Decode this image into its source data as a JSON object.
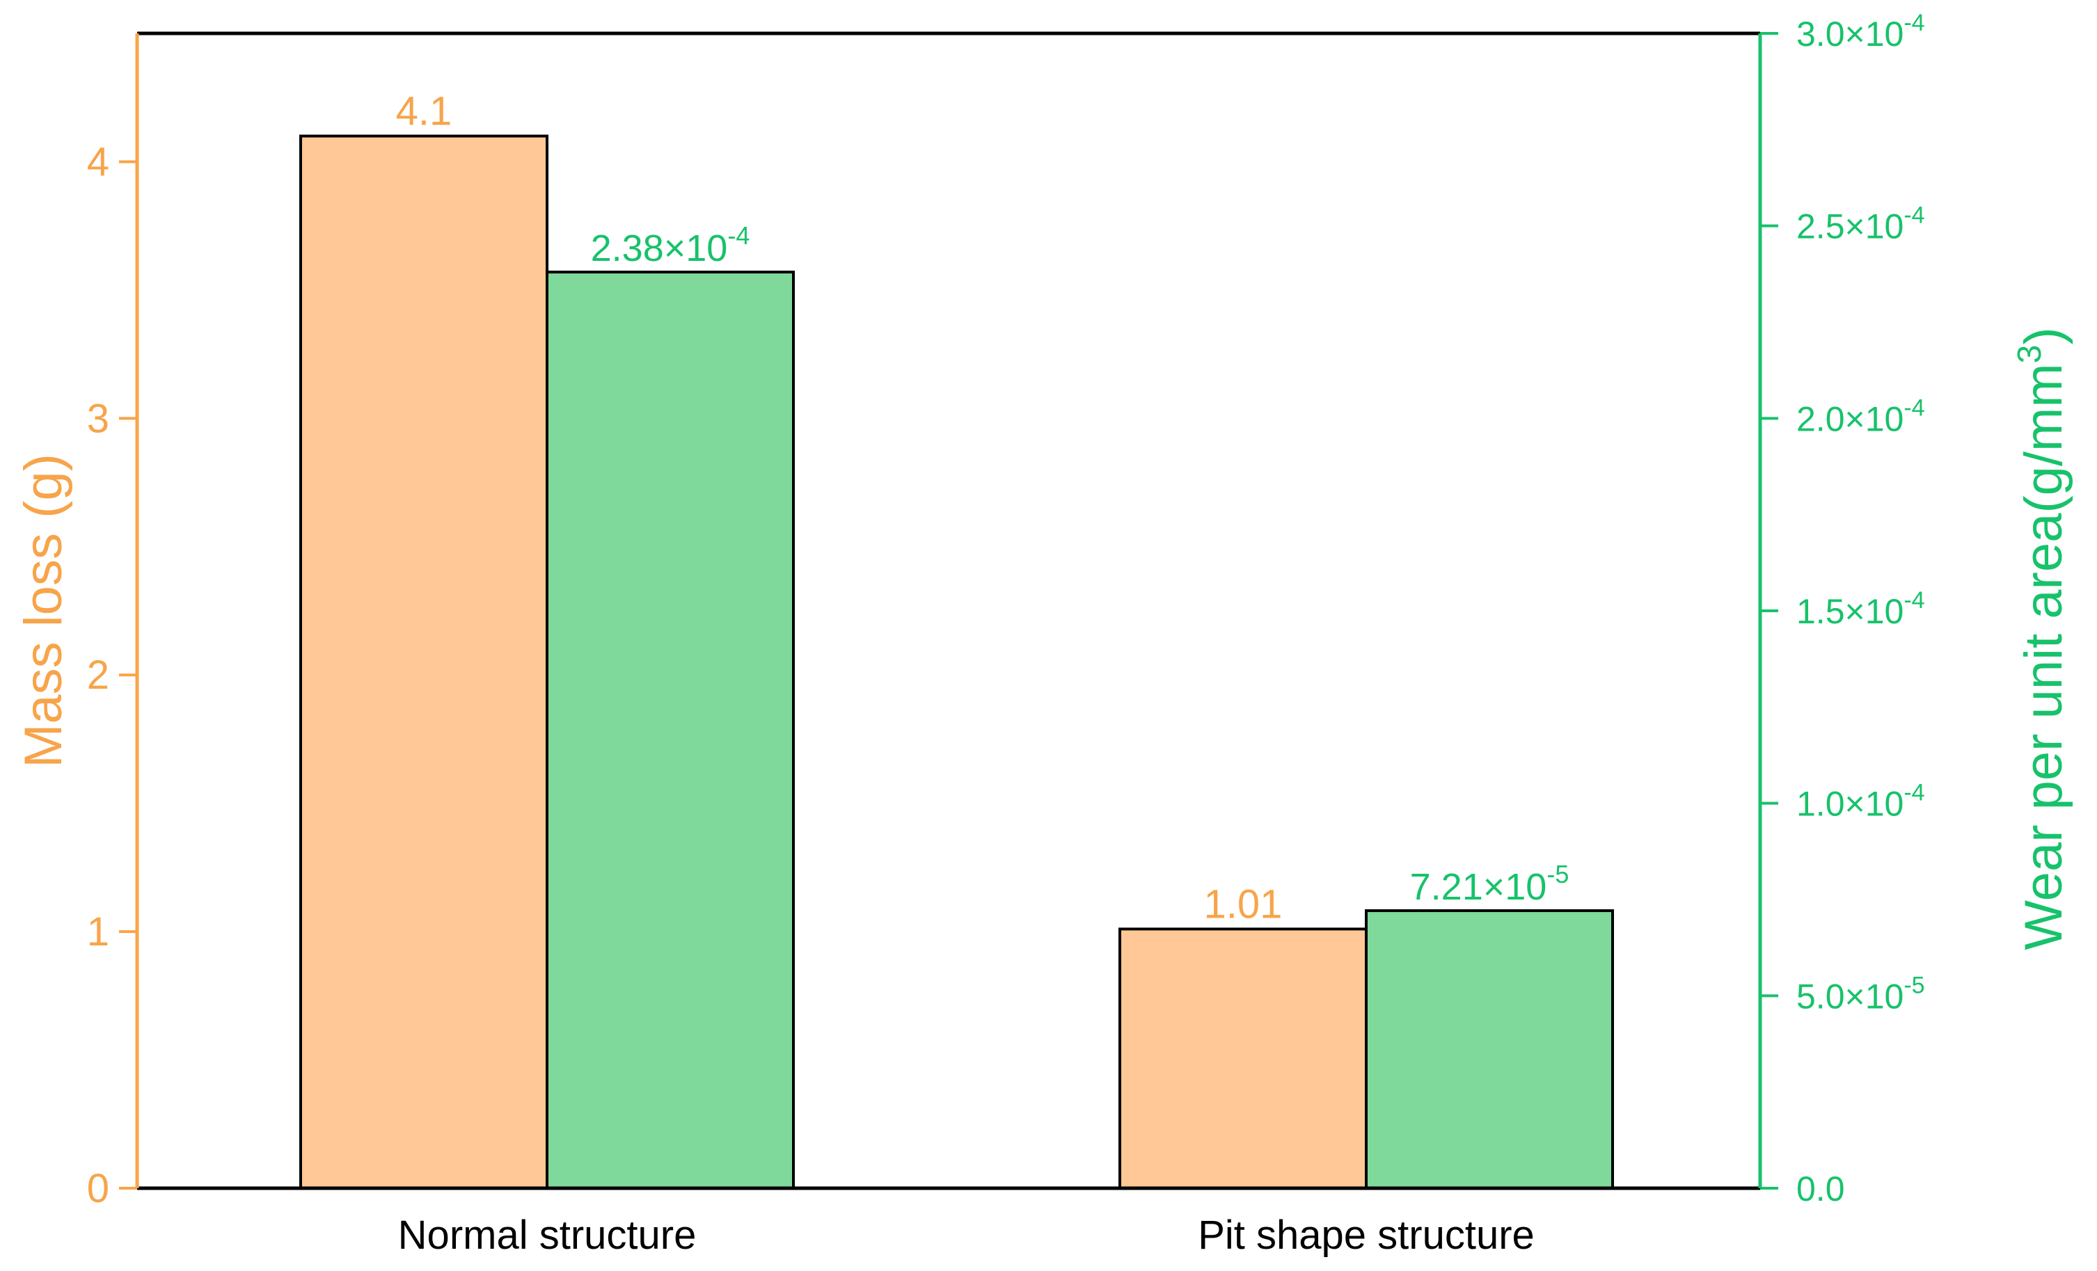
{
  "chart_data": {
    "type": "bar",
    "categories": [
      "Normal structure",
      "Pit shape structure"
    ],
    "series": [
      {
        "axis": "left",
        "values": [
          4.1,
          1.01
        ],
        "labels": [
          "4.1",
          "1.01"
        ],
        "color": "#ffc896"
      },
      {
        "axis": "right",
        "values": [
          0.000238,
          7.21e-05
        ],
        "labels": [
          {
            "mantissa": "2.38×10",
            "exp": "-4"
          },
          {
            "mantissa": "7.21×10",
            "exp": "-5"
          }
        ],
        "color": "#7fd99a"
      }
    ],
    "y_left": {
      "label": "Mass loss (g)",
      "ylim": [
        0,
        4.5
      ],
      "ticks": [
        0,
        1,
        2,
        3,
        4
      ],
      "tick_labels": [
        "0",
        "1",
        "2",
        "3",
        "4"
      ],
      "color": "#f7a44a"
    },
    "y_right": {
      "label_main": "Wear per unit area(g/mm",
      "label_sup": "3",
      "label_end": ")",
      "ylim": [
        0,
        0.0003
      ],
      "ticks": [
        0,
        5e-05,
        0.0001,
        0.00015,
        0.0002,
        0.00025,
        0.0003
      ],
      "tick_labels": [
        {
          "base": "0.0",
          "exp": ""
        },
        {
          "base": "5.0×10",
          "exp": "-5"
        },
        {
          "base": "1.0×10",
          "exp": "-4"
        },
        {
          "base": "1.5×10",
          "exp": "-4"
        },
        {
          "base": "2.0×10",
          "exp": "-4"
        },
        {
          "base": "2.5×10",
          "exp": "-4"
        },
        {
          "base": "3.0×10",
          "exp": "-4"
        }
      ],
      "color": "#17c26a"
    },
    "grid": false,
    "legend": "none"
  }
}
